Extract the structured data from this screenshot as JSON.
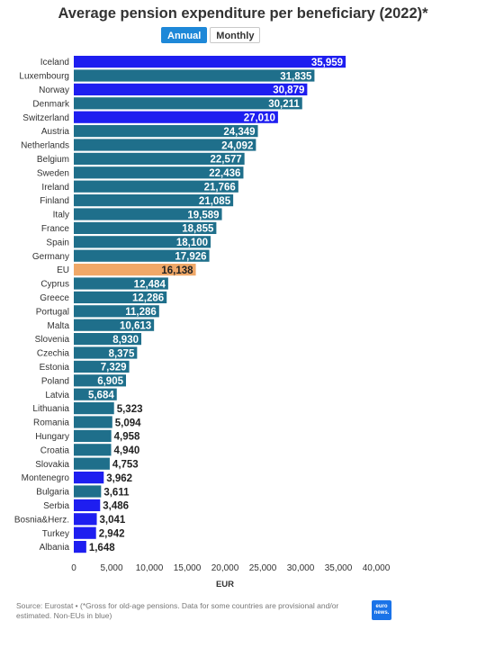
{
  "title": "Average pension expenditure per beneficiary (2022)*",
  "toggle": {
    "annual_label": "Annual",
    "monthly_label": "Monthly",
    "selected": "Annual"
  },
  "source_text": "Source: Eurostat • (*Gross for old-age pensions. Data for some countries are provisional and/or estimated. Non-EUs in blue)",
  "logo": {
    "line1": "euro",
    "line2": "news."
  },
  "colors": {
    "eu_member": "#1f6f8b",
    "non_eu": "#1e1ef0",
    "eu_average": "#f0a868",
    "logo": "#1a73e8"
  },
  "chart_data": {
    "type": "bar",
    "orientation": "horizontal",
    "title": "Average pension expenditure per beneficiary (2022)*",
    "xlabel": "EUR",
    "ylabel": "",
    "xlim": [
      0,
      40000
    ],
    "xticks": [
      0,
      5000,
      10000,
      15000,
      20000,
      25000,
      30000,
      35000,
      40000
    ],
    "xtick_labels": [
      "0",
      "5,000",
      "10,000",
      "15,000",
      "20,000",
      "25,000",
      "30,000",
      "35,000",
      "40,000"
    ],
    "categories": [
      "Iceland",
      "Luxembourg",
      "Norway",
      "Denmark",
      "Switzerland",
      "Austria",
      "Netherlands",
      "Belgium",
      "Sweden",
      "Ireland",
      "Finland",
      "Italy",
      "France",
      "Spain",
      "Germany",
      "EU",
      "Cyprus",
      "Greece",
      "Portugal",
      "Malta",
      "Slovenia",
      "Czechia",
      "Estonia",
      "Poland",
      "Latvia",
      "Lithuania",
      "Romania",
      "Hungary",
      "Croatia",
      "Slovakia",
      "Montenegro",
      "Bulgaria",
      "Serbia",
      "Bosnia&Herz.",
      "Turkey",
      "Albania"
    ],
    "values": [
      35959,
      31835,
      30879,
      30211,
      27010,
      24349,
      24092,
      22577,
      22436,
      21766,
      21085,
      19589,
      18855,
      18100,
      17926,
      16138,
      12484,
      12286,
      11286,
      10613,
      8930,
      8375,
      7329,
      6905,
      5684,
      5323,
      5094,
      4958,
      4940,
      4753,
      3962,
      3611,
      3486,
      3041,
      2942,
      1648
    ],
    "value_labels": [
      "35,959",
      "31,835",
      "30,879",
      "30,211",
      "27,010",
      "24,349",
      "24,092",
      "22,577",
      "22,436",
      "21,766",
      "21,085",
      "19,589",
      "18,855",
      "18,100",
      "17,926",
      "16,138",
      "12,484",
      "12,286",
      "11,286",
      "10,613",
      "8,930",
      "8,375",
      "7,329",
      "6,905",
      "5,684",
      "5,323",
      "5,094",
      "4,958",
      "4,940",
      "4,753",
      "3,962",
      "3,611",
      "3,486",
      "3,041",
      "2,942",
      "1,648"
    ],
    "groups": [
      "non_eu",
      "eu_member",
      "non_eu",
      "eu_member",
      "non_eu",
      "eu_member",
      "eu_member",
      "eu_member",
      "eu_member",
      "eu_member",
      "eu_member",
      "eu_member",
      "eu_member",
      "eu_member",
      "eu_member",
      "eu_average",
      "eu_member",
      "eu_member",
      "eu_member",
      "eu_member",
      "eu_member",
      "eu_member",
      "eu_member",
      "eu_member",
      "eu_member",
      "eu_member",
      "eu_member",
      "eu_member",
      "eu_member",
      "eu_member",
      "non_eu",
      "eu_member",
      "non_eu",
      "non_eu",
      "non_eu",
      "non_eu"
    ],
    "grid": false,
    "legend": "none"
  }
}
